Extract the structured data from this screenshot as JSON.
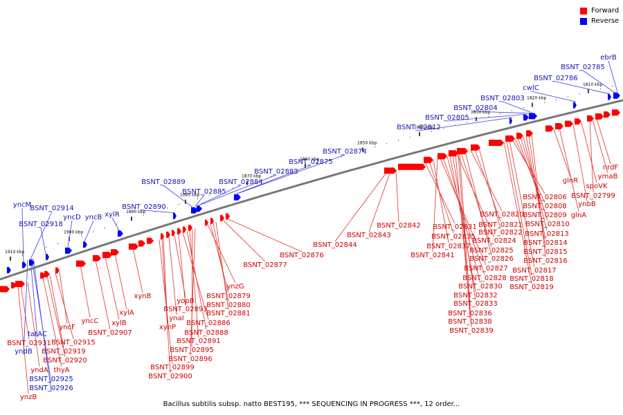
{
  "legend": {
    "forward_label": "Forward",
    "reverse_label": "Reverse",
    "forward_color": "#ff0000",
    "reverse_color": "#0000ff"
  },
  "colors": {
    "forward": "#ff0000",
    "forward_line": "#e0302a",
    "forward_text": "#cc0000",
    "reverse": "#0000ff",
    "reverse_line": "#3a3ae0",
    "reverse_text": "#1414b4",
    "backbone": "#777777"
  },
  "caption": "Bacillus subtilis subsp. natto BEST195, *** SEQUENCING IN PROGRESS ***, 12 order...",
  "scale": {
    "unit": "kbp",
    "ticks": [
      {
        "label": "1910 kbp",
        "pos": 1910
      },
      {
        "label": "1900 kbp",
        "pos": 1900
      },
      {
        "label": "1890 kbp",
        "pos": 1890
      },
      {
        "label": "1880 kbp",
        "pos": 1880
      },
      {
        "label": "1870 kbp",
        "pos": 1870
      },
      {
        "label": "1860 kbp",
        "pos": 1860
      },
      {
        "label": "1850 kbp",
        "pos": 1850
      },
      {
        "label": "1840 kbp",
        "pos": 1840
      },
      {
        "label": "1830 kbp",
        "pos": 1830
      },
      {
        "label": "1820 kbp",
        "pos": 1820
      },
      {
        "label": "1810 kbp",
        "pos": 1810
      }
    ]
  },
  "reverse_labels": [
    "yncM",
    "BSNT_02914",
    "BSNT_02918",
    "yncD",
    "yncB",
    "xylR",
    "BSNT_02890",
    "BSNT_02889",
    "BSNT_02885",
    "BSNT_02884",
    "BSNT_02883",
    "BSNT_02875",
    "BSNT_02874",
    "BSNT_02812",
    "BSNT_02805",
    "BSNT_02804",
    "BSNT_02803",
    "cwlC",
    "BSNT_02786",
    "BSNT_02785",
    "ebrB",
    "tatAC",
    "yndB",
    "BSNT_02925",
    "BSNT_02926"
  ],
  "forward_labels": [
    "yncF",
    "BSNT_02931",
    "BSNT_02915",
    "BSNT_02919",
    "BSNT_02920",
    "yndA",
    "thyA",
    "ynzB",
    "yncC",
    "BSNT_02907",
    "xylB",
    "xylA",
    "xynB",
    "xynP",
    "ynaI",
    "yopB",
    "BSNT_02893",
    "BSNT_02886",
    "BSNT_02888",
    "BSNT_02891",
    "BSNT_02895",
    "BSNT_02896",
    "BSNT_02899",
    "BSNT_02900",
    "ynzG",
    "BSNT_02879",
    "BSNT_02880",
    "BSNT_02881",
    "BSNT_02876",
    "BSNT_02877",
    "BSNT_02842",
    "BSNT_02843",
    "BSNT_02844",
    "BSNT_02831",
    "BSNT_02835",
    "BSNT_02837",
    "BSNT_02841",
    "BSNT_02820",
    "BSNT_02821",
    "BSNT_02822",
    "BSNT_02824",
    "BSNT_02825",
    "BSNT_02826",
    "BSNT_02827",
    "BSNT_02828",
    "BSNT_02830",
    "BSNT_02832",
    "BSNT_02833",
    "BSNT_02836",
    "BSNT_02838",
    "BSNT_02839",
    "BSNT_02806",
    "BSNT_02808",
    "BSNT_02809",
    "BSNT_02810",
    "BSNT_02813",
    "BSNT_02814",
    "BSNT_02815",
    "BSNT_02816",
    "BSNT_02817",
    "BSNT_02818",
    "BSNT_02819",
    "glnR",
    "glnA",
    "spoVK",
    "ynbB",
    "BSNT_02799",
    "nrdF",
    "ymaB"
  ]
}
